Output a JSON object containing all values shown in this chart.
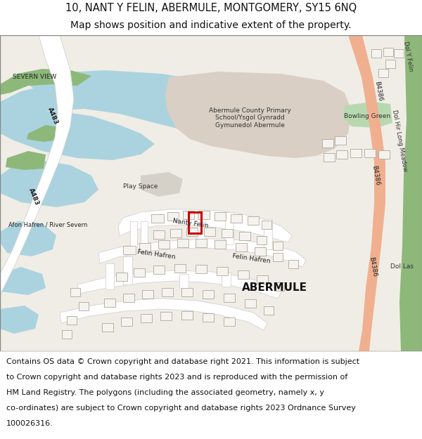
{
  "title_line1": "10, NANT Y FELIN, ABERMULE, MONTGOMERY, SY15 6NQ",
  "title_line2": "Map shows position and indicative extent of the property.",
  "footer_text": "Contains OS data © Crown copyright and database right 2021. This information is subject to Crown copyright and database rights 2023 and is reproduced with the permission of HM Land Registry. The polygons (including the associated geometry, namely x, y co-ordinates) are subject to Crown copyright and database rights 2023 Ordnance Survey 100026316.",
  "title_fontsize": 10.5,
  "footer_fontsize": 8.0,
  "fig_width": 6.0,
  "fig_height": 6.25,
  "map_bg": "#f0ede6",
  "water_color": "#aad3df",
  "green_color": "#8db87a",
  "school_color": "#d9cfc4",
  "bowling_green_color": "#b8d9b0",
  "plot_rect_color": "#cc0000",
  "salmon_road": "#f0b090",
  "white_road": "#ffffff",
  "road_outline": "#cccccc"
}
